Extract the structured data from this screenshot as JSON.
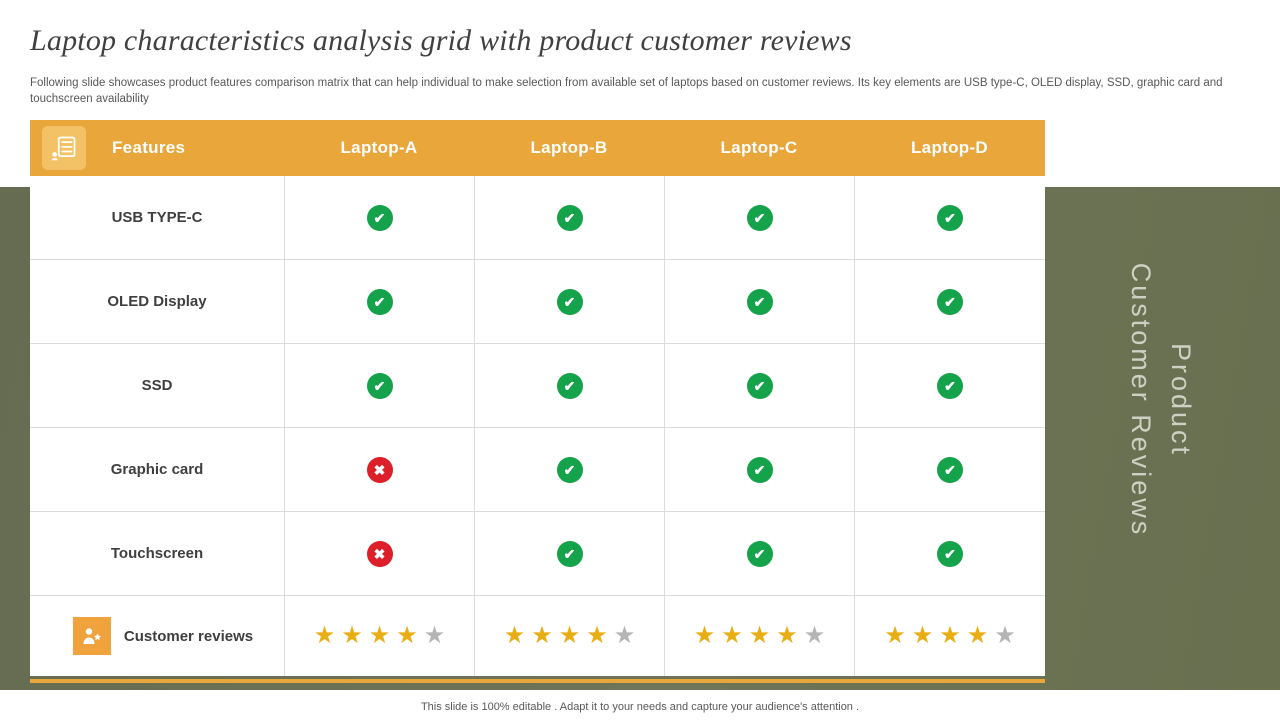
{
  "slide": {
    "title": "Laptop characteristics analysis grid with product customer reviews",
    "subtitle": "Following slide showcases product features comparison matrix that can help individual to make selection from available set of laptops based on customer reviews. Its key elements are USB type-C,  OLED display, SSD, graphic card and touchscreen availability",
    "footer": "This slide is 100% editable . Adapt it to your needs and capture your audience's attention .",
    "side_text_line1": "Product",
    "side_text_line2": "Customer Reviews"
  },
  "table": {
    "header": {
      "features_label": "Features",
      "columns": [
        "Laptop-A",
        "Laptop-B",
        "Laptop-C",
        "Laptop-D"
      ]
    },
    "rows": [
      {
        "feature": "USB TYPE-C",
        "values": [
          "check",
          "check",
          "check",
          "check"
        ]
      },
      {
        "feature": "OLED Display",
        "values": [
          "check",
          "check",
          "check",
          "check"
        ]
      },
      {
        "feature": "SSD",
        "values": [
          "check",
          "check",
          "check",
          "check"
        ]
      },
      {
        "feature": "Graphic card",
        "values": [
          "cross",
          "check",
          "check",
          "check"
        ]
      },
      {
        "feature": "Touchscreen",
        "values": [
          "cross",
          "check",
          "check",
          "check"
        ]
      }
    ],
    "reviews_row": {
      "feature": "Customer reviews",
      "ratings": [
        4,
        4,
        4,
        4
      ],
      "max_rating": 5
    }
  },
  "icons": {
    "check_glyph": "✔",
    "cross_glyph": "✖",
    "star_glyph": "★"
  },
  "colors": {
    "header_orange": "#E9A63B",
    "header_icon_orange": "#F3C267",
    "reviews_icon_orange": "#F0A33C",
    "olive_panel": "#6C7257",
    "check_green": "#14A24A",
    "cross_red": "#DC1F28",
    "star_gold": "#E9AE13",
    "star_gray": "#B5B5B5"
  }
}
